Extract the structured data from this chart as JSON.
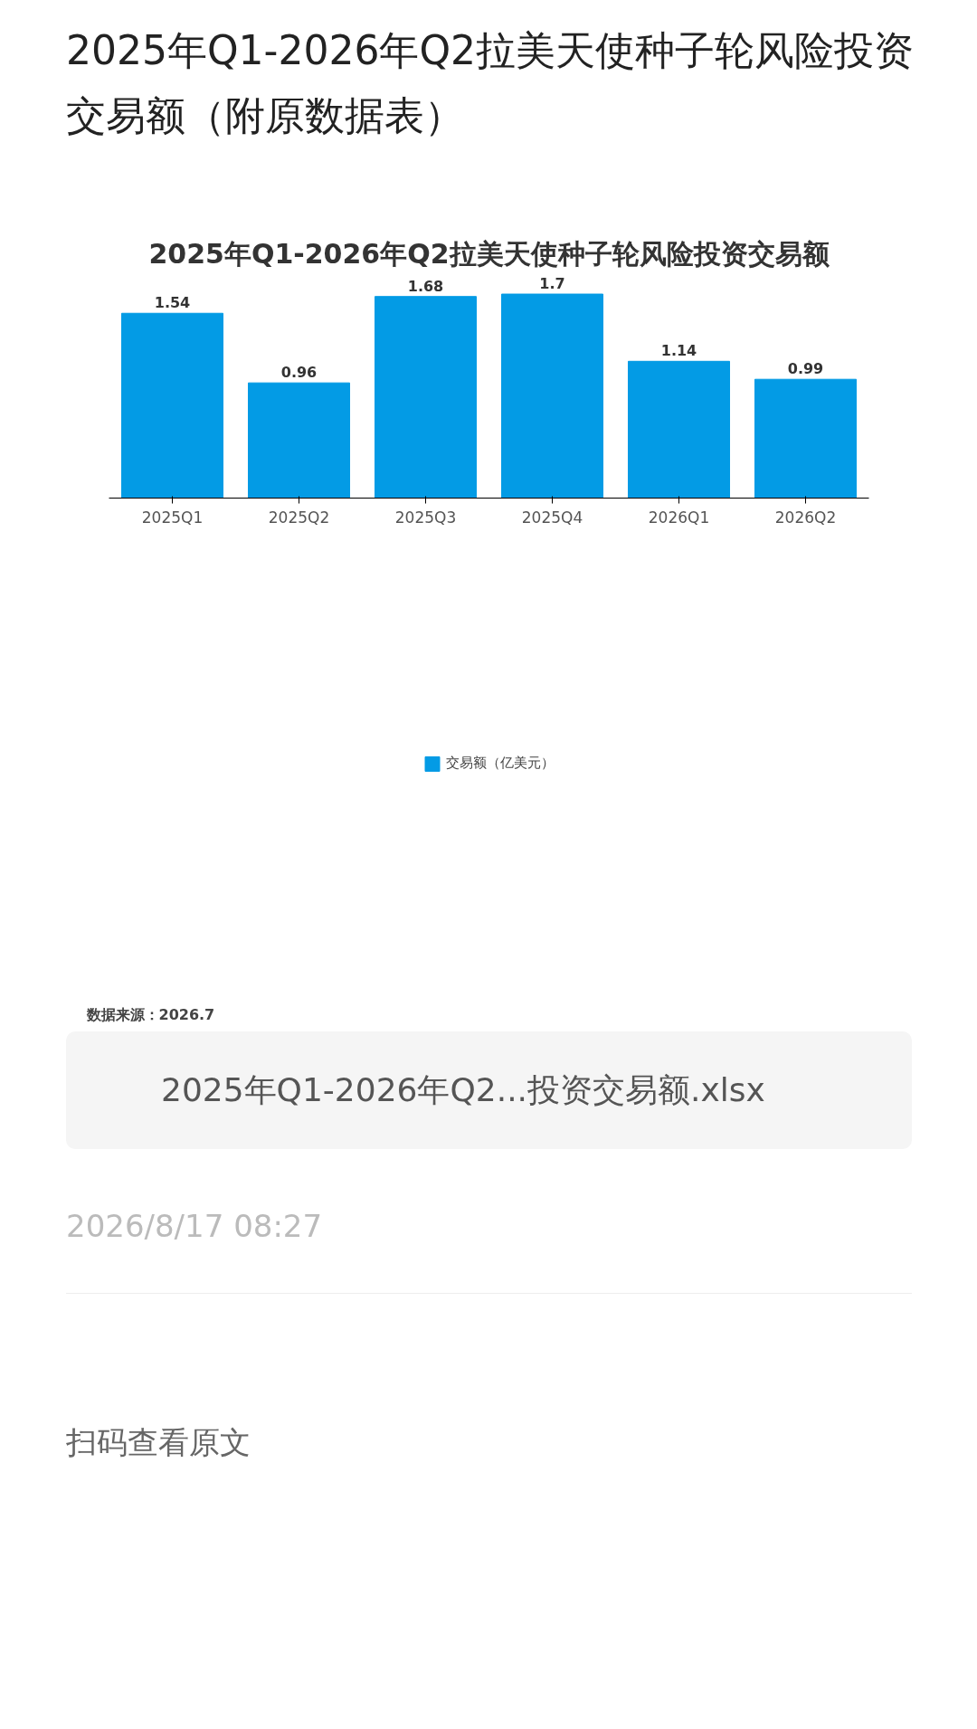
{
  "chart_data": {
    "type": "bar",
    "title": "2025年Q1-2026年Q2拉美天使种子轮风险投资交易额（附原数据表）",
    "subtitle": "2025年Q1-2026年Q2拉美天使种子轮风险投资交易额",
    "categories": [
      "2025Q1",
      "2025Q2",
      "2025Q3",
      "2025Q4",
      "2026Q1",
      "2026Q2"
    ],
    "series": [
      {
        "name": "交易额（亿美元）",
        "color": "#039be5",
        "values": [
          1.54,
          0.96,
          1.68,
          1.7,
          1.14,
          0.99
        ]
      }
    ],
    "data_labels": true,
    "legend": "bottom",
    "tick_labels": "x",
    "annotations": [
      "数据来源：2026.7",
      "2025年Q1-2026年Q2...投资交易额.xlsx",
      "2026/8/17 08:27",
      "扫码查看原文"
    ]
  }
}
